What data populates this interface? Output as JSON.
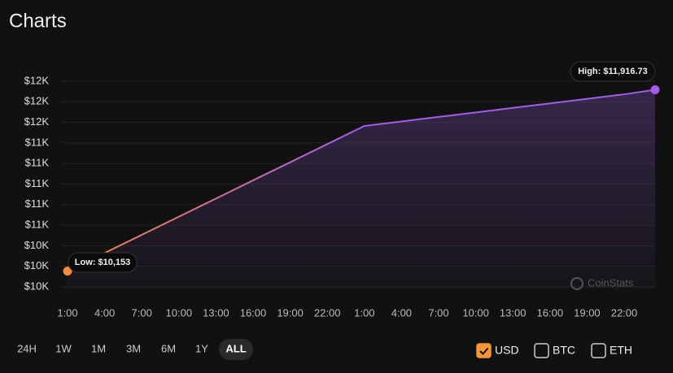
{
  "title": "Charts",
  "chart_data": {
    "type": "line",
    "categories": [
      "1:00",
      "4:00",
      "7:00",
      "10:00",
      "13:00",
      "16:00",
      "19:00",
      "22:00",
      "1:00",
      "4:00",
      "7:00",
      "10:00",
      "13:00",
      "16:00",
      "19:00",
      "22:00",
      null
    ],
    "values": [
      10153,
      10330,
      10506,
      10683,
      10859,
      11036,
      11212,
      11389,
      11565,
      11609,
      11653,
      11697,
      11741,
      11785,
      11829,
      11873,
      11916.73
    ],
    "color_start": "#f5893e",
    "color_end": "#a35ce8",
    "ylim": [
      10000,
      12000
    ],
    "yticks": [
      {
        "value": 10000,
        "label": "$10K"
      },
      {
        "value": 10200,
        "label": "$10K"
      },
      {
        "value": 10400,
        "label": "$10K"
      },
      {
        "value": 10600,
        "label": "$11K"
      },
      {
        "value": 10800,
        "label": "$11K"
      },
      {
        "value": 11000,
        "label": "$11K"
      },
      {
        "value": 11200,
        "label": "$11K"
      },
      {
        "value": 11400,
        "label": "$11K"
      },
      {
        "value": 11600,
        "label": "$12K"
      },
      {
        "value": 11800,
        "label": "$12K"
      },
      {
        "value": 12000,
        "label": "$12K"
      }
    ],
    "grid": true,
    "low_label": "Low: $10,153",
    "high_label": "High: $11,916.73",
    "watermark": "CoinStats"
  },
  "ranges": [
    "24H",
    "1W",
    "1M",
    "3M",
    "6M",
    "1Y",
    "ALL"
  ],
  "selected_range": "ALL",
  "currencies": [
    {
      "label": "USD",
      "checked": true
    },
    {
      "label": "BTC",
      "checked": false
    },
    {
      "label": "ETH",
      "checked": false
    }
  ]
}
